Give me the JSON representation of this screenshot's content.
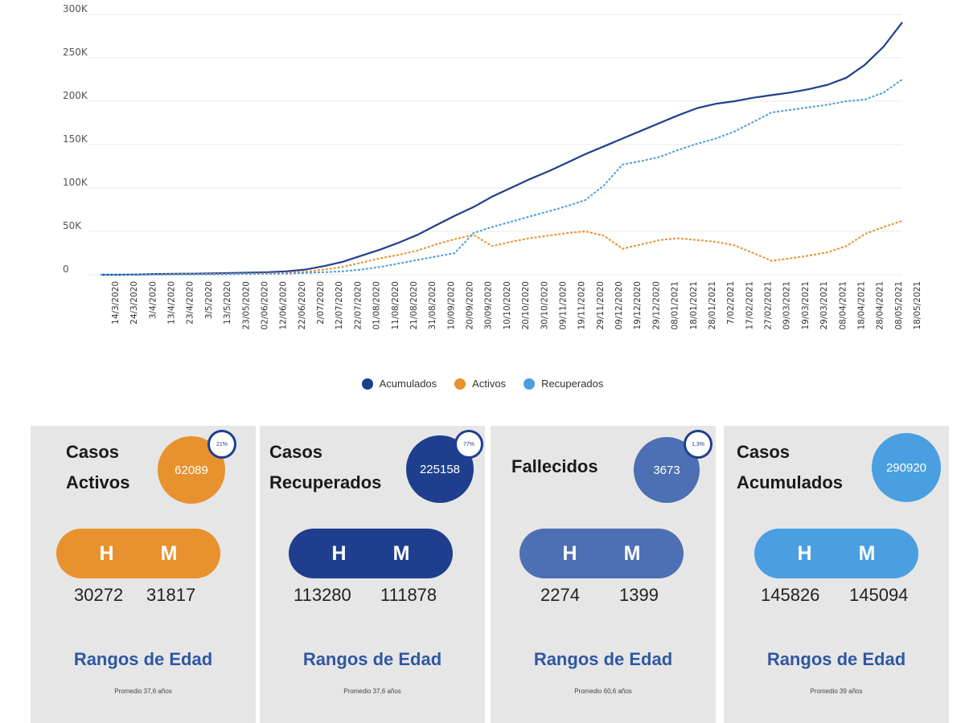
{
  "chart_data": {
    "type": "line",
    "title": "",
    "xlabel": "",
    "ylabel": "",
    "ylim": [
      0,
      300000
    ],
    "y_ticks": [
      {
        "value": 0,
        "label": "0"
      },
      {
        "value": 50000,
        "label": "50K"
      },
      {
        "value": 100000,
        "label": "100K"
      },
      {
        "value": 150000,
        "label": "150K"
      },
      {
        "value": 200000,
        "label": "200K"
      },
      {
        "value": 250000,
        "label": "250K"
      },
      {
        "value": 300000,
        "label": "300K"
      }
    ],
    "categories": [
      "14/3/2020",
      "24/3/2020",
      "3/4/2020",
      "13/4/2020",
      "23/4/2020",
      "3/5/2020",
      "13/5/2020",
      "23/05/2020",
      "02/06/2020",
      "12/06/2020",
      "22/06/2020",
      "2/07/2020",
      "12/07/2020",
      "22/07/2020",
      "01/08/2020",
      "11/08/2020",
      "21/08/2020",
      "31/08/2020",
      "10/09/2020",
      "20/09/2020",
      "30/09/2020",
      "10/10/2020",
      "20/10/2020",
      "30/10/2020",
      "09/11/2020",
      "19/11/2020",
      "29/11/2020",
      "09/12/2020",
      "19/12/2020",
      "29/12/2020",
      "08/01/2021",
      "18/01/2021",
      "28/01/2021",
      "7/02/2021",
      "17/02/2021",
      "27/02/2021",
      "09/03/2021",
      "19/03/2021",
      "29/03/2021",
      "08/04/2021",
      "18/04/2021",
      "28/04/2021",
      "08/05/2021",
      "18/05/2021"
    ],
    "series": [
      {
        "name": "Acumulados",
        "color": "#1f3f8e",
        "dashed": false,
        "values": [
          0,
          0,
          300,
          800,
          1000,
          1200,
          1500,
          2000,
          2500,
          3000,
          4000,
          6000,
          10000,
          15000,
          22000,
          29000,
          37000,
          46000,
          57000,
          68000,
          78000,
          90000,
          100000,
          110000,
          119000,
          129000,
          139000,
          148000,
          157000,
          166000,
          175000,
          184000,
          192000,
          197000,
          200000,
          204000,
          207000,
          210000,
          214000,
          219000,
          227000,
          242000,
          263000,
          290920
        ]
      },
      {
        "name": "Activos",
        "color": "#e8922f",
        "dashed": true,
        "values": [
          0,
          0,
          200,
          500,
          700,
          800,
          900,
          1100,
          1400,
          1700,
          2300,
          3500,
          6000,
          9000,
          14000,
          19000,
          23000,
          28000,
          35000,
          41000,
          46000,
          33000,
          38000,
          42000,
          45000,
          48000,
          50000,
          45000,
          30000,
          35000,
          40000,
          42000,
          40000,
          38000,
          34000,
          25000,
          16000,
          19000,
          22000,
          26000,
          33000,
          47000,
          55000,
          62089
        ]
      },
      {
        "name": "Recuperados",
        "color": "#4a9fe0",
        "dashed": true,
        "values": [
          0,
          0,
          0,
          100,
          200,
          300,
          400,
          600,
          900,
          1100,
          1400,
          2000,
          3000,
          4000,
          6000,
          9000,
          13000,
          17000,
          21000,
          25000,
          48000,
          55000,
          61000,
          67000,
          73000,
          79000,
          86000,
          103000,
          127000,
          131000,
          136000,
          144000,
          151000,
          157000,
          165000,
          176000,
          187000,
          190000,
          193000,
          196000,
          200000,
          202000,
          210000,
          225158
        ]
      }
    ]
  },
  "legend": [
    {
      "label": "Acumulados",
      "color": "#1f3f8e"
    },
    {
      "label": "Activos",
      "color": "#e8922f"
    },
    {
      "label": "Recuperados",
      "color": "#4a9fe0"
    }
  ],
  "cards": [
    {
      "title_line1": "Casos",
      "title_line2": "Activos",
      "value": "62089",
      "percent": "21%",
      "color": "#e8922f",
      "h_label": "H",
      "m_label": "M",
      "h_value": "30272",
      "m_value": "31817",
      "rangos": "Rangos de Edad",
      "promedio": "Promedio 37,6 años"
    },
    {
      "title_line1": "Casos",
      "title_line2": "Recuperados",
      "value": "225158",
      "percent": "77%",
      "color": "#1f3f8e",
      "h_label": "H",
      "m_label": "M",
      "h_value": "113280",
      "m_value": "111878",
      "rangos": "Rangos de Edad",
      "promedio": "Promedio 37,6 años"
    },
    {
      "title_line1": "Fallecidos",
      "title_line2": "",
      "value": "3673",
      "percent": "1,3%",
      "color": "#4d6fb3",
      "h_label": "H",
      "m_label": "M",
      "h_value": "2274",
      "m_value": "1399",
      "rangos": "Rangos de Edad",
      "promedio": "Promedio 60,6 años"
    },
    {
      "title_line1": "Casos",
      "title_line2": "Acumulados",
      "value": "290920",
      "percent": "",
      "color": "#4a9fe0",
      "h_label": "H",
      "m_label": "M",
      "h_value": "145826",
      "m_value": "145094",
      "rangos": "Rangos de Edad",
      "promedio": "Promedio 39 años"
    }
  ]
}
